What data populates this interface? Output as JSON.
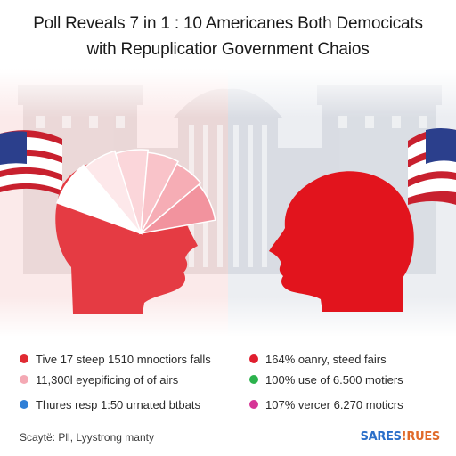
{
  "title_line1": "Poll Reveals 7 in 1 : 10 Americanes Both Democicats",
  "title_line2": "with Repuplicatior Government Chaios",
  "legend": [
    {
      "label": "Tive 17 steep 1510 mnoctiors falls",
      "color": "#e02a32"
    },
    {
      "label": "11,300l eyepificing of of airs",
      "color": "#f4a9b4"
    },
    {
      "label": "Thures resp 1:50 urnated btbats",
      "color": "#2f7fd6"
    },
    {
      "label": "164% oanry, steed fairs",
      "color": "#e01e2e"
    },
    {
      "label": "100% use of 6.500 motiers",
      "color": "#2bb24c"
    },
    {
      "label": "107% vercer 6.270 moticrs",
      "color": "#d63596"
    }
  ],
  "source": "Scaytë: Pll, Lyystrong manty",
  "brand": {
    "part1": "SARES",
    "part2": "!RUES",
    "color1": "#2a6fc9",
    "color2": "#e06a2a"
  },
  "colors": {
    "left_head": "#e53b43",
    "right_head": "#e2141d",
    "left_tint": "#fbeaea",
    "right_tint": "#eceef2",
    "flag_red": "#c8202e",
    "flag_blue": "#2b3f8c"
  },
  "chart_data": {
    "type": "pie",
    "slices": [
      {
        "value": 20,
        "color": "#ffffff"
      },
      {
        "value": 15,
        "color": "#fde8ea"
      },
      {
        "value": 15,
        "color": "#fbd6da"
      },
      {
        "value": 15,
        "color": "#f9c3c9"
      },
      {
        "value": 15,
        "color": "#f6adb5"
      },
      {
        "value": 20,
        "color": "#f2939e"
      }
    ]
  }
}
